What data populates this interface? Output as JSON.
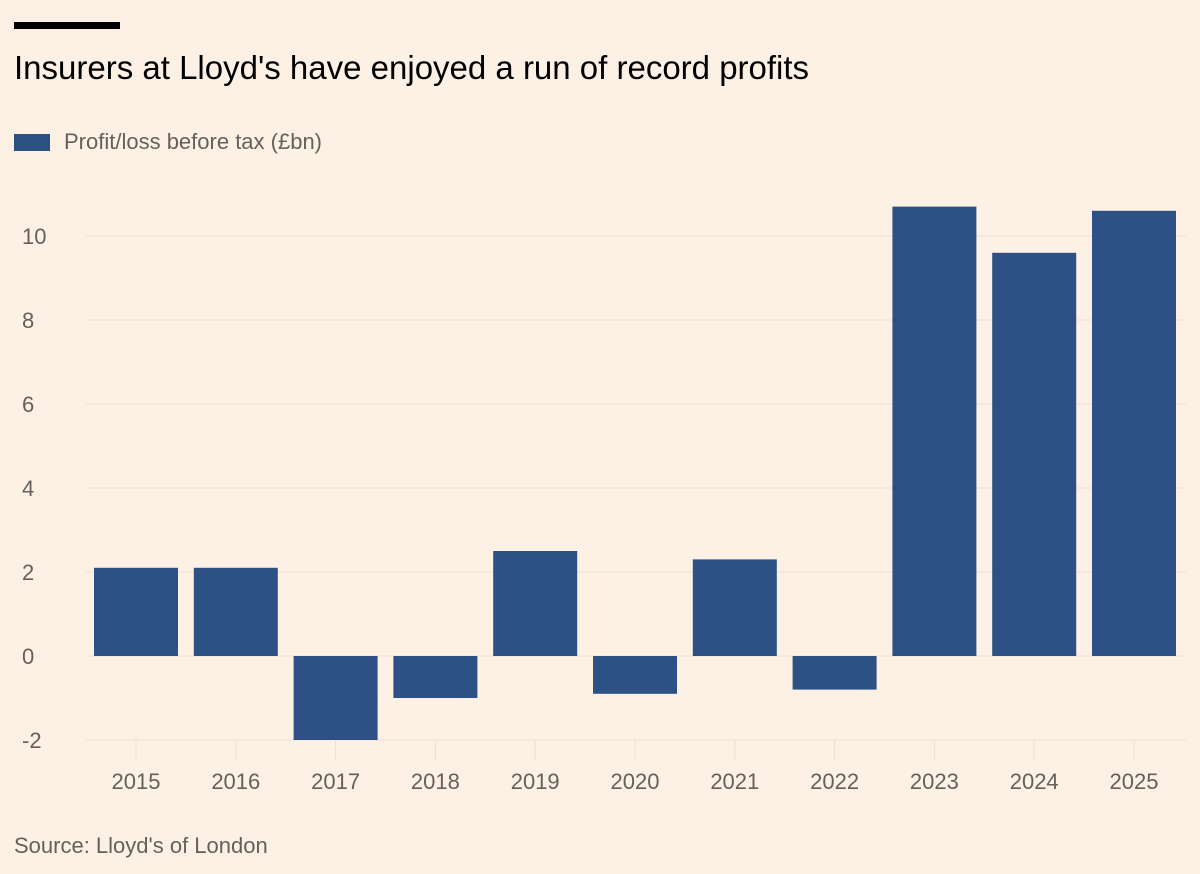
{
  "chart_data": {
    "type": "bar",
    "title": "Insurers at Lloyd's have enjoyed a run of record profits",
    "legend": [
      {
        "label": "Profit/loss before tax (£bn)"
      }
    ],
    "categories": [
      "2015",
      "2016",
      "2017",
      "2018",
      "2019",
      "2020",
      "2021",
      "2022",
      "2023",
      "2024",
      "2025"
    ],
    "series": [
      {
        "name": "Profit/loss before tax (£bn)",
        "color": "#2d5185",
        "values": [
          2.1,
          2.1,
          -2.0,
          -1.0,
          2.5,
          -0.9,
          2.3,
          -0.8,
          10.7,
          9.6,
          10.6
        ]
      }
    ],
    "yticks": [
      "-2",
      "0",
      "2",
      "4",
      "6",
      "8",
      "10"
    ],
    "ylim": [
      -2,
      11.2
    ],
    "grid": true,
    "legend_position": "top-left",
    "source": "Source: Lloyd's of London"
  },
  "colors": {
    "background": "#fdf1e6",
    "bar": "#2d5185",
    "gridline": "#eedfd2",
    "axis_text": "#66605c"
  }
}
